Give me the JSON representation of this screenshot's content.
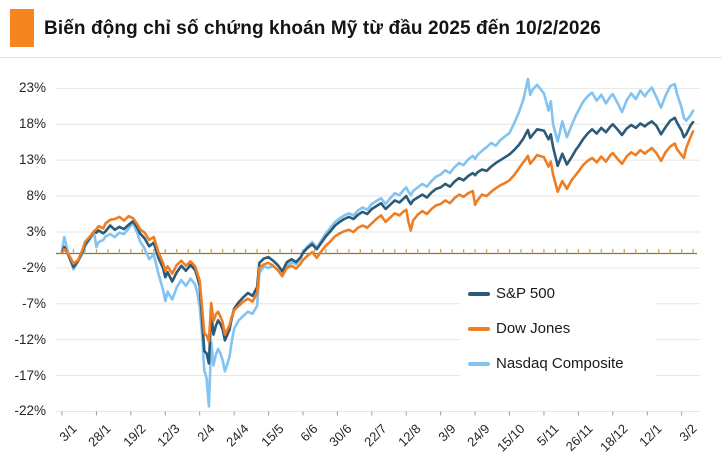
{
  "header": {
    "title": "Biến động chỉ số chứng khoán Mỹ từ đầu 2025 đến 10/2/2026",
    "accent_color": "#f5861f"
  },
  "chart_data": {
    "type": "line",
    "title": "Biến động chỉ số chứng khoán Mỹ từ đầu 2025 đến 10/2/2026",
    "legend_position": "inside-right",
    "grid": "horizontal",
    "grid_color": "#e6e6e6",
    "baseline": {
      "value": 0,
      "color": "#8d7a26",
      "tick_color": "#c3aa5e"
    },
    "y_axis": {
      "unit": "%",
      "tick_values": [
        23,
        18,
        13,
        8,
        3,
        -2,
        -7,
        -12,
        -17,
        -22
      ],
      "ylim": [
        -24,
        26
      ]
    },
    "x_axis": {
      "tick_labels": [
        "3/1",
        "28/1",
        "19/2",
        "12/3",
        "2/4",
        "24/4",
        "15/5",
        "6/6",
        "30/6",
        "22/7",
        "12/8",
        "3/9",
        "24/9",
        "15/10",
        "5/11",
        "26/11",
        "18/12",
        "12/1",
        "3/2"
      ],
      "tick_days": [
        0,
        15,
        30,
        45,
        60,
        75,
        90,
        105,
        120,
        135,
        150,
        165,
        180,
        195,
        210,
        225,
        240,
        255,
        270
      ],
      "minor_tick_every_days": 5,
      "end_day": 275
    },
    "days": [
      0,
      1,
      3,
      5,
      7,
      9,
      10,
      12,
      14,
      15,
      16,
      18,
      19,
      21,
      23,
      25,
      27,
      29,
      31,
      33,
      34,
      36,
      38,
      40,
      42,
      44,
      45,
      46,
      48,
      50,
      52,
      54,
      56,
      58,
      59,
      60,
      61,
      62,
      63,
      64,
      65,
      66,
      67,
      68,
      69,
      70,
      71,
      73,
      74,
      75,
      77,
      79,
      81,
      83,
      85,
      86,
      88,
      90,
      92,
      94,
      96,
      98,
      100,
      102,
      104,
      105,
      107,
      109,
      111,
      113,
      115,
      117,
      119,
      121,
      123,
      125,
      127,
      129,
      131,
      133,
      135,
      137,
      139,
      141,
      143,
      145,
      147,
      149,
      150,
      151,
      152,
      153,
      155,
      157,
      159,
      161,
      163,
      165,
      167,
      169,
      171,
      173,
      175,
      177,
      179,
      180,
      181,
      183,
      185,
      187,
      189,
      191,
      193,
      195,
      197,
      199,
      201,
      202,
      203,
      204,
      205,
      207,
      210,
      212,
      213,
      214,
      216,
      218,
      220,
      222,
      224,
      225,
      227,
      229,
      231,
      233,
      235,
      237,
      239,
      240,
      242,
      244,
      246,
      248,
      250,
      252,
      254,
      255,
      257,
      259,
      261,
      263,
      265,
      267,
      268,
      270,
      271,
      272,
      274,
      275
    ],
    "series": [
      {
        "name": "S&P 500",
        "color": "#2c5a77",
        "values": [
          0.2,
          0.9,
          -0.4,
          -1.9,
          -1.0,
          0.3,
          1.2,
          2.1,
          3.1,
          2.9,
          3.2,
          2.8,
          3.1,
          3.9,
          3.3,
          3.7,
          3.4,
          4.0,
          4.5,
          3.5,
          2.8,
          2.1,
          1.0,
          1.5,
          -0.6,
          -2.0,
          -3.3,
          -2.6,
          -3.9,
          -2.6,
          -1.7,
          -2.4,
          -1.6,
          -2.3,
          -3.3,
          -4.6,
          -8.9,
          -13.6,
          -13.9,
          -15.3,
          -8.3,
          -11.3,
          -10.1,
          -9.3,
          -9.8,
          -10.6,
          -12.1,
          -10.6,
          -9.0,
          -7.7,
          -6.8,
          -6.1,
          -5.5,
          -5.9,
          -4.7,
          -1.3,
          -0.7,
          -0.5,
          -1.0,
          -1.6,
          -2.5,
          -1.2,
          -0.8,
          -1.2,
          -0.5,
          0.1,
          0.8,
          1.3,
          0.6,
          1.5,
          2.4,
          3.1,
          3.9,
          4.4,
          4.8,
          5.1,
          4.8,
          5.4,
          5.8,
          5.5,
          6.2,
          6.6,
          7.0,
          6.2,
          6.8,
          7.4,
          7.1,
          7.7,
          8.0,
          7.4,
          6.9,
          7.4,
          7.8,
          8.2,
          7.8,
          8.5,
          9.0,
          9.2,
          9.7,
          9.3,
          10.0,
          10.5,
          10.2,
          10.8,
          11.2,
          10.9,
          11.3,
          11.7,
          11.5,
          12.1,
          12.6,
          13.0,
          13.4,
          13.8,
          14.4,
          15.1,
          16.0,
          16.6,
          17.2,
          16.1,
          16.5,
          17.3,
          17.1,
          15.9,
          16.6,
          14.8,
          12.2,
          13.9,
          12.4,
          13.4,
          14.5,
          14.9,
          15.9,
          16.7,
          17.3,
          16.7,
          17.5,
          16.9,
          17.7,
          18.0,
          17.3,
          16.5,
          17.4,
          17.9,
          17.5,
          18.1,
          17.7,
          18.0,
          18.4,
          17.8,
          16.6,
          17.6,
          18.5,
          18.9,
          18.2,
          17.1,
          16.2,
          16.6,
          17.9,
          18.3
        ]
      },
      {
        "name": "Dow Jones",
        "color": "#ef7d22",
        "values": [
          0.1,
          0.6,
          -0.2,
          -1.4,
          -0.9,
          0.6,
          1.6,
          2.3,
          3.1,
          3.4,
          3.8,
          3.5,
          4.2,
          4.7,
          4.8,
          5.1,
          4.6,
          5.2,
          4.9,
          4.0,
          3.4,
          2.9,
          1.9,
          2.3,
          0.2,
          -1.3,
          -2.4,
          -1.8,
          -2.8,
          -1.6,
          -1.0,
          -1.7,
          -1.1,
          -1.8,
          -2.8,
          -3.8,
          -7.4,
          -11.1,
          -11.4,
          -12.3,
          -6.9,
          -9.4,
          -8.5,
          -8.1,
          -8.8,
          -9.6,
          -11.3,
          -10.0,
          -8.8,
          -7.9,
          -7.3,
          -6.7,
          -6.3,
          -6.7,
          -5.5,
          -2.0,
          -1.5,
          -1.3,
          -1.7,
          -2.3,
          -3.1,
          -2.0,
          -1.7,
          -2.1,
          -1.4,
          -0.9,
          -0.3,
          0.2,
          -0.6,
          0.3,
          1.1,
          1.7,
          2.4,
          2.8,
          3.1,
          3.3,
          3.0,
          3.6,
          3.9,
          3.6,
          4.2,
          4.8,
          5.3,
          4.4,
          5.0,
          5.6,
          5.3,
          5.9,
          6.1,
          4.4,
          3.2,
          4.6,
          5.4,
          5.9,
          5.5,
          6.2,
          6.7,
          6.9,
          7.4,
          7.0,
          7.7,
          8.2,
          7.9,
          8.4,
          8.7,
          6.8,
          7.4,
          8.2,
          8.0,
          8.6,
          9.1,
          9.5,
          9.8,
          10.2,
          10.9,
          11.8,
          12.7,
          13.1,
          13.6,
          12.5,
          12.9,
          13.7,
          13.4,
          12.1,
          12.8,
          11.0,
          8.6,
          10.1,
          9.0,
          10.2,
          11.0,
          11.4,
          12.3,
          12.9,
          13.3,
          12.7,
          13.5,
          12.8,
          13.7,
          14.0,
          13.2,
          12.5,
          13.5,
          14.1,
          13.7,
          14.4,
          13.9,
          14.2,
          14.7,
          14.0,
          12.9,
          14.1,
          14.9,
          15.3,
          14.5,
          13.7,
          13.3,
          14.7,
          16.3,
          17.0
        ]
      },
      {
        "name": "Nasdaq Composite",
        "color": "#82c3f1",
        "values": [
          0.4,
          2.3,
          -0.3,
          -2.2,
          -1.1,
          0.1,
          1.0,
          1.9,
          2.9,
          0.9,
          1.6,
          1.9,
          2.4,
          2.7,
          2.3,
          2.9,
          2.7,
          3.5,
          4.2,
          2.7,
          1.7,
          0.7,
          -0.8,
          -0.1,
          -2.8,
          -5.0,
          -6.6,
          -5.3,
          -6.4,
          -4.7,
          -3.7,
          -4.5,
          -3.5,
          -4.3,
          -5.6,
          -7.4,
          -11.2,
          -16.3,
          -17.4,
          -21.3,
          -12.3,
          -15.6,
          -14.1,
          -13.3,
          -13.9,
          -14.9,
          -16.4,
          -14.4,
          -12.2,
          -10.5,
          -9.3,
          -8.7,
          -8.1,
          -8.4,
          -7.3,
          -2.7,
          -1.8,
          -2.0,
          -1.7,
          -2.3,
          -3.2,
          -1.7,
          -1.2,
          -1.5,
          -0.7,
          0.2,
          1.0,
          1.6,
          0.8,
          1.8,
          2.8,
          3.6,
          4.4,
          4.9,
          5.3,
          5.6,
          5.3,
          6.0,
          6.4,
          6.1,
          6.9,
          7.3,
          7.7,
          6.9,
          7.7,
          8.4,
          8.1,
          8.9,
          9.2,
          8.6,
          8.1,
          8.7,
          9.2,
          9.7,
          9.3,
          10.1,
          10.7,
          11.0,
          11.6,
          11.2,
          12.0,
          12.6,
          12.3,
          13.1,
          13.6,
          13.2,
          13.7,
          14.3,
          14.8,
          15.4,
          15.0,
          15.8,
          16.3,
          16.8,
          18.1,
          19.6,
          21.4,
          22.8,
          24.3,
          22.1,
          22.8,
          23.5,
          22.3,
          19.9,
          21.2,
          18.0,
          15.6,
          18.4,
          16.2,
          17.8,
          19.3,
          19.9,
          21.1,
          21.9,
          22.4,
          21.3,
          22.1,
          20.9,
          21.9,
          22.2,
          21.0,
          19.7,
          21.3,
          22.3,
          21.5,
          22.7,
          21.9,
          22.4,
          23.1,
          21.8,
          20.3,
          22.0,
          23.3,
          23.6,
          22.2,
          20.3,
          18.9,
          18.5,
          19.3,
          19.9
        ]
      }
    ]
  }
}
